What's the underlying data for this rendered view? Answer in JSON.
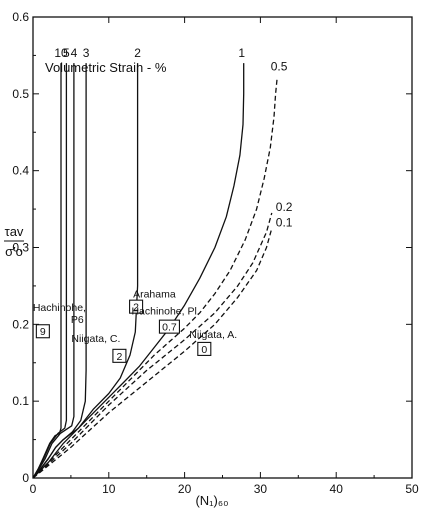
{
  "chart_data": {
    "type": "line",
    "xlabel": "(N₁)₆₀",
    "ylabel": {
      "numerator": "τav",
      "denominator": "σ′o"
    },
    "xlim": [
      0,
      50
    ],
    "ylim": [
      0,
      0.6
    ],
    "xticks": [
      "0",
      "10",
      "20",
      "30",
      "40",
      "50"
    ],
    "yticks": [
      "0",
      "0.1",
      "0.2",
      "0.3",
      "0.4",
      "0.5",
      "0.6"
    ],
    "grid": false,
    "header": "Volumetric Strain - %",
    "series": [
      {
        "name": "10",
        "style": "solid",
        "points": [
          [
            0,
            0
          ],
          [
            0.7,
            0.012
          ],
          [
            1.3,
            0.025
          ],
          [
            2.2,
            0.045
          ],
          [
            2.9,
            0.055
          ],
          [
            3.5,
            0.058
          ],
          [
            3.7,
            0.065
          ],
          [
            3.7,
            0.54
          ]
        ]
      },
      {
        "name": "5",
        "style": "solid",
        "points": [
          [
            0,
            0
          ],
          [
            0.7,
            0.012
          ],
          [
            1.4,
            0.025
          ],
          [
            2.3,
            0.045
          ],
          [
            3.3,
            0.058
          ],
          [
            4.2,
            0.065
          ],
          [
            4.4,
            0.075
          ],
          [
            4.4,
            0.54
          ]
        ]
      },
      {
        "name": "4",
        "style": "solid",
        "points": [
          [
            0,
            0
          ],
          [
            0.8,
            0.012
          ],
          [
            1.6,
            0.025
          ],
          [
            2.5,
            0.045
          ],
          [
            3.6,
            0.058
          ],
          [
            5.1,
            0.068
          ],
          [
            5.4,
            0.08
          ],
          [
            5.4,
            0.54
          ]
        ]
      },
      {
        "name": "3",
        "style": "solid",
        "points": [
          [
            0,
            0
          ],
          [
            1.0,
            0.012
          ],
          [
            2.0,
            0.025
          ],
          [
            3.0,
            0.04
          ],
          [
            4.0,
            0.05
          ],
          [
            5.2,
            0.06
          ],
          [
            6.3,
            0.075
          ],
          [
            6.9,
            0.1
          ],
          [
            7.0,
            0.14
          ],
          [
            7.0,
            0.54
          ]
        ]
      },
      {
        "name": "2",
        "style": "solid",
        "points": [
          [
            0,
            0
          ],
          [
            1.0,
            0.012
          ],
          [
            2.0,
            0.025
          ],
          [
            3.0,
            0.04
          ],
          [
            4.0,
            0.05
          ],
          [
            6.0,
            0.065
          ],
          [
            8.0,
            0.09
          ],
          [
            10.0,
            0.11
          ],
          [
            11.5,
            0.13
          ],
          [
            12.8,
            0.16
          ],
          [
            13.5,
            0.19
          ],
          [
            13.8,
            0.25
          ],
          [
            13.8,
            0.54
          ]
        ]
      },
      {
        "name": "1",
        "style": "solid",
        "points": [
          [
            0,
            0
          ],
          [
            2,
            0.02
          ],
          [
            4,
            0.045
          ],
          [
            6,
            0.065
          ],
          [
            8,
            0.085
          ],
          [
            10,
            0.105
          ],
          [
            12,
            0.125
          ],
          [
            14,
            0.145
          ],
          [
            16,
            0.17
          ],
          [
            18,
            0.195
          ],
          [
            20,
            0.225
          ],
          [
            22,
            0.26
          ],
          [
            24,
            0.3
          ],
          [
            25.5,
            0.34
          ],
          [
            26.5,
            0.38
          ],
          [
            27.3,
            0.42
          ],
          [
            27.7,
            0.46
          ],
          [
            27.8,
            0.5
          ],
          [
            27.8,
            0.54
          ]
        ]
      },
      {
        "name": "0.5",
        "style": "dashed",
        "points": [
          [
            0,
            0
          ],
          [
            4,
            0.04
          ],
          [
            8,
            0.08
          ],
          [
            12,
            0.12
          ],
          [
            16,
            0.16
          ],
          [
            20,
            0.195
          ],
          [
            22,
            0.215
          ],
          [
            24,
            0.24
          ],
          [
            26,
            0.27
          ],
          [
            28,
            0.31
          ],
          [
            29.5,
            0.35
          ],
          [
            30.5,
            0.39
          ],
          [
            31.3,
            0.43
          ],
          [
            31.8,
            0.47
          ],
          [
            32,
            0.5
          ],
          [
            32.2,
            0.52
          ]
        ]
      },
      {
        "name": "0.2",
        "style": "dashed",
        "points": [
          [
            0,
            0
          ],
          [
            5,
            0.045
          ],
          [
            10,
            0.095
          ],
          [
            15,
            0.14
          ],
          [
            20,
            0.18
          ],
          [
            24,
            0.215
          ],
          [
            27,
            0.25
          ],
          [
            29,
            0.28
          ],
          [
            30.8,
            0.32
          ],
          [
            31.5,
            0.345
          ]
        ]
      },
      {
        "name": "0.1",
        "style": "dashed",
        "points": [
          [
            0,
            0
          ],
          [
            5,
            0.04
          ],
          [
            10,
            0.085
          ],
          [
            15,
            0.125
          ],
          [
            20,
            0.165
          ],
          [
            24,
            0.2
          ],
          [
            27,
            0.235
          ],
          [
            29.5,
            0.27
          ],
          [
            30.8,
            0.3
          ],
          [
            31.5,
            0.325
          ]
        ]
      }
    ],
    "annotations": [
      {
        "label": "Hachinohe,\nP6",
        "box": "9",
        "x": 1.3,
        "y": 0.191
      },
      {
        "label": "Niigata, C.",
        "box": "2",
        "x": 11.4,
        "y": 0.159
      },
      {
        "label": "Arahama",
        "box": "2",
        "x": 13.6,
        "y": 0.223
      },
      {
        "label": "Hachinohe, Pl.",
        "box": "0.7",
        "x": 18.0,
        "y": 0.197
      },
      {
        "label": "Niigata, A.",
        "box": "0",
        "x": 22.6,
        "y": 0.168
      }
    ]
  }
}
